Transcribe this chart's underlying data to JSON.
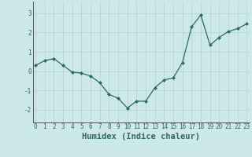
{
  "x": [
    0,
    1,
    2,
    3,
    4,
    5,
    6,
    7,
    8,
    9,
    10,
    11,
    12,
    13,
    14,
    15,
    16,
    17,
    18,
    19,
    20,
    21,
    22,
    23
  ],
  "y": [
    0.3,
    0.55,
    0.65,
    0.3,
    -0.05,
    -0.1,
    -0.25,
    -0.6,
    -1.2,
    -1.4,
    -1.9,
    -1.55,
    -1.55,
    -0.85,
    -0.45,
    -0.35,
    0.45,
    2.3,
    2.9,
    1.35,
    1.75,
    2.05,
    2.2,
    2.45
  ],
  "line_color": "#2e6b5e",
  "marker": "D",
  "marker_size": 2.0,
  "line_width": 0.9,
  "background_color": "#cce8e8",
  "grid_color": "#b8d4d4",
  "xlabel": "Humidex (Indice chaleur)",
  "xlabel_fontsize": 7.5,
  "xlabel_bold": true,
  "yticks": [
    -2,
    -1,
    0,
    1,
    2,
    3
  ],
  "ytick_labels": [
    "-2",
    "-1",
    "0",
    "1",
    "2",
    "3"
  ],
  "xticks": [
    0,
    1,
    2,
    3,
    4,
    5,
    6,
    7,
    8,
    9,
    10,
    11,
    12,
    13,
    14,
    15,
    16,
    17,
    18,
    19,
    20,
    21,
    22,
    23
  ],
  "xlim": [
    -0.3,
    23.3
  ],
  "ylim": [
    -2.65,
    3.6
  ],
  "tick_fontsize": 5.5,
  "tick_color": "#2e6b5e",
  "spine_color": "#555555"
}
